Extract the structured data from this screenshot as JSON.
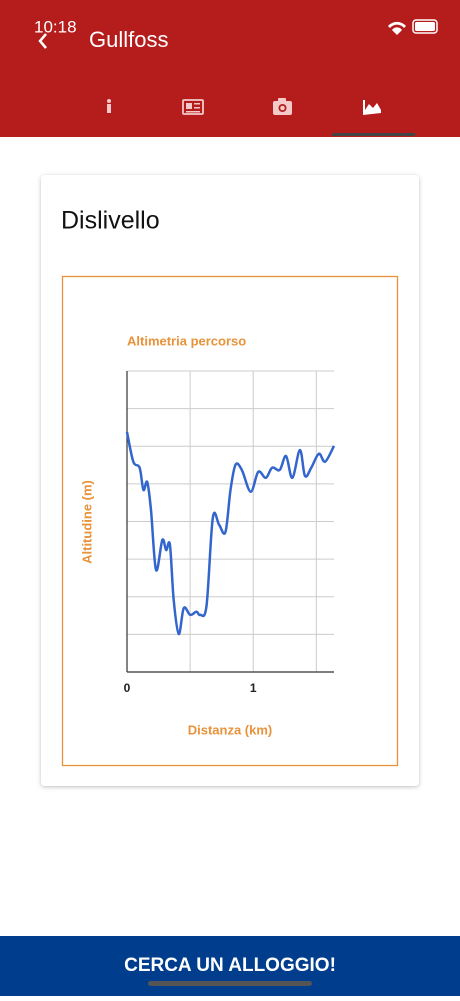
{
  "status_bar": {
    "time": "10:18"
  },
  "header": {
    "title": "Gullfoss"
  },
  "card": {
    "title": "Dislivello"
  },
  "chart_data": {
    "type": "line",
    "title": "Altimetria percorso",
    "x_label": "Distanza (km)",
    "y_label": "Altitudine (m)",
    "x": [
      0,
      0.05,
      0.1,
      0.13,
      0.16,
      0.19,
      0.23,
      0.28,
      0.31,
      0.34,
      0.37,
      0.41,
      0.45,
      0.5,
      0.55,
      0.58,
      0.63,
      0.68,
      0.73,
      0.78,
      0.82,
      0.86,
      0.91,
      0.98,
      1.04,
      1.1,
      1.15,
      1.21,
      1.26,
      1.31,
      1.37,
      1.41,
      1.46,
      1.52,
      1.57,
      1.64
    ],
    "values": [
      6.38,
      5.59,
      5.43,
      4.84,
      5.05,
      4.31,
      2.71,
      3.51,
      3.24,
      3.38,
      1.91,
      1.01,
      1.7,
      1.52,
      1.6,
      1.52,
      1.76,
      4.1,
      3.91,
      3.72,
      4.84,
      5.51,
      5.37,
      4.79,
      5.32,
      5.16,
      5.43,
      5.37,
      5.74,
      5.16,
      5.9,
      5.21,
      5.43,
      5.8,
      5.59,
      6.01
    ],
    "color": "#3366cc",
    "xlim": [
      0,
      1.64
    ],
    "ylim": [
      0,
      8
    ],
    "xticks": [
      0,
      1
    ],
    "xgrid": [
      0.5,
      1,
      1.5
    ],
    "ygrid": [
      1,
      2,
      3,
      4,
      5,
      6,
      7,
      8
    ],
    "grid": true
  },
  "footer": {
    "button": "CERCA UN ALLOGGIO!"
  }
}
